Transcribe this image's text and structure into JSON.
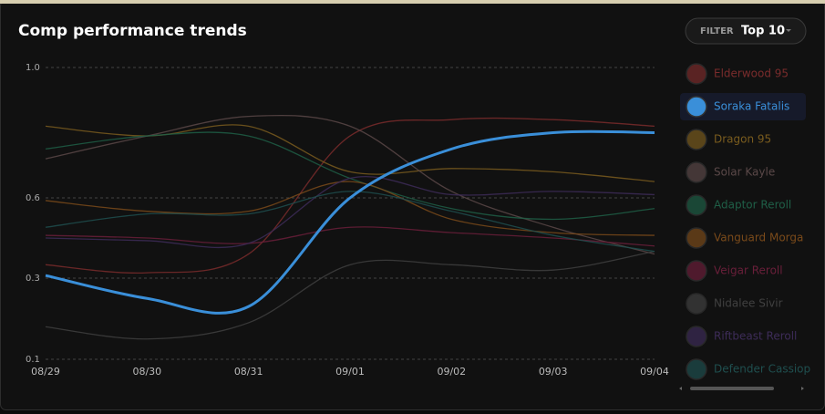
{
  "chart_data": {
    "type": "line",
    "title": "Comp performance trends",
    "filter_label": "FILTER",
    "filter_value": "Top 10",
    "categories": [
      "08/29",
      "08/30",
      "08/31",
      "09/01",
      "09/02",
      "09/03",
      "09/04"
    ],
    "ylim": [
      0.1,
      1.0
    ],
    "yticks": [
      0.1,
      0.3,
      0.6,
      {
        "value": 1.0,
        "label": "1.0"
      }
    ],
    "grid": true,
    "series": [
      {
        "name": "Elderwood 95",
        "color": "#7a2c2c",
        "values": [
          0.35,
          0.32,
          0.39,
          0.79,
          0.84,
          0.84,
          0.82
        ]
      },
      {
        "name": "Soraka Fatalis",
        "color": "#3a8fd9",
        "selected": true,
        "values": [
          0.31,
          0.25,
          0.23,
          0.6,
          0.75,
          0.8,
          0.8
        ]
      },
      {
        "name": "Dragon 95",
        "color": "#7a5c1e",
        "values": [
          0.82,
          0.79,
          0.82,
          0.68,
          0.69,
          0.68,
          0.65
        ]
      },
      {
        "name": "Solar Kayle",
        "color": "#5a4848",
        "values": [
          0.72,
          0.79,
          0.85,
          0.82,
          0.62,
          0.49,
          0.39
        ]
      },
      {
        "name": "Adaptor Reroll",
        "color": "#1f5f47",
        "values": [
          0.75,
          0.79,
          0.79,
          0.66,
          0.56,
          0.52,
          0.56
        ]
      },
      {
        "name": "Vanguard Morga",
        "color": "#7a4a1a",
        "values": [
          0.59,
          0.55,
          0.55,
          0.65,
          0.52,
          0.47,
          0.46
        ]
      },
      {
        "name": "Veigar Reroll",
        "color": "#6a1f3a",
        "values": [
          0.46,
          0.45,
          0.43,
          0.49,
          0.47,
          0.45,
          0.42
        ]
      },
      {
        "name": "Nidalee Sivir",
        "color": "#404040",
        "values": [
          0.18,
          0.15,
          0.19,
          0.35,
          0.35,
          0.33,
          0.4
        ]
      },
      {
        "name": "Riftbeast Reroll",
        "color": "#3d2c58",
        "values": [
          0.45,
          0.44,
          0.43,
          0.66,
          0.61,
          0.62,
          0.61
        ]
      },
      {
        "name": "Defender Cassiop",
        "color": "#1f4f4f",
        "values": [
          0.49,
          0.54,
          0.54,
          0.62,
          0.55,
          0.46,
          0.4
        ]
      }
    ]
  }
}
